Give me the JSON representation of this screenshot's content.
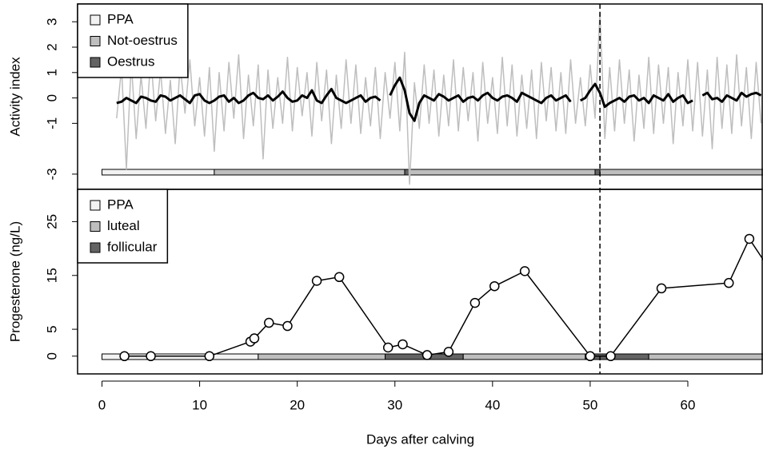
{
  "chart_data": [
    {
      "type": "line",
      "ylabel": "Activity index",
      "xlim": [
        -2.5,
        67.7
      ],
      "ylim": [
        -3.6,
        3.7
      ],
      "yticks": [
        -3,
        -1,
        0,
        1,
        2,
        3
      ],
      "legend": "topleft",
      "vline": 51,
      "x": [
        1.5,
        2,
        2.5,
        3,
        3.5,
        4,
        4.5,
        5,
        5.5,
        6,
        6.5,
        7,
        7.5,
        8,
        8.5,
        9,
        9.5,
        10,
        10.5,
        11,
        11.5,
        12,
        12.5,
        13,
        13.5,
        14,
        14.5,
        15,
        15.5,
        16,
        16.5,
        17,
        17.5,
        18,
        18.5,
        19,
        19.5,
        20,
        20.5,
        21,
        21.5,
        22,
        22.5,
        23,
        23.5,
        24,
        24.5,
        25,
        25.5,
        26,
        26.5,
        27,
        27.5,
        28,
        28.5,
        29,
        29.5,
        30,
        30.5,
        31,
        31.5,
        32,
        32.5,
        33,
        33.5,
        34,
        34.5,
        35,
        35.5,
        36,
        36.5,
        37,
        37.5,
        38,
        38.5,
        39,
        39.5,
        40,
        40.5,
        41,
        41.5,
        42,
        42.5,
        43,
        43.5,
        44,
        44.5,
        45,
        45.5,
        46,
        46.5,
        47,
        47.5,
        48,
        48.5,
        49,
        49.5,
        50,
        50.5,
        51,
        51.5,
        52,
        52.5,
        53,
        53.5,
        54,
        54.5,
        55,
        55.5,
        56,
        56.5,
        57,
        57.5,
        58,
        58.5,
        59,
        59.5,
        60,
        60.5,
        61,
        61.5,
        62,
        62.5,
        63,
        63.5,
        64,
        64.5,
        65,
        65.5,
        66,
        66.5,
        67,
        67.5
      ],
      "series": [
        {
          "color": "#bebebe",
          "width": 1.5,
          "values": [
            -0.8,
            1.2,
            -2.8,
            1.4,
            -1.6,
            0.9,
            -1.2,
            1.6,
            -0.9,
            1.1,
            -1.4,
            0.7,
            -1.8,
            1.3,
            -0.6,
            1.5,
            -1.1,
            0.8,
            -1.5,
            1.2,
            -2.1,
            1.0,
            -1.3,
            1.4,
            -0.8,
            1.7,
            -1.6,
            0.9,
            -1.1,
            1.3,
            -2.4,
            1.1,
            -1.2,
            0.8,
            -1.0,
            1.6,
            -1.3,
            1.2,
            -0.7,
            1.0,
            -1.5,
            1.4,
            -0.9,
            1.1,
            -1.8,
            0.9,
            -1.2,
            1.5,
            -1.0,
            1.3,
            -1.4,
            0.8,
            -1.1,
            1.2,
            -1.6,
            1.0,
            -0.8,
            1.4,
            -1.3,
            1.8,
            -3.4,
            0.6,
            -1.2,
            1.3,
            -1.0,
            1.1,
            -1.5,
            0.9,
            -1.1,
            1.5,
            -1.3,
            1.2,
            -0.9,
            1.0,
            -1.7,
            1.4,
            -1.0,
            0.8,
            -1.4,
            1.6,
            -1.1,
            1.3,
            -1.5,
            0.9,
            -1.2,
            1.1,
            -1.6,
            1.4,
            -0.9,
            1.2,
            -1.3,
            1.0,
            -1.4,
            1.5,
            -1.0,
            0.8,
            -1.1,
            1.3,
            -0.8,
            3.4,
            -1.6,
            1.2,
            -1.3,
            1.5,
            -1.0,
            1.1,
            -1.7,
            0.9,
            -1.2,
            1.6,
            -1.4,
            1.3,
            -1.0,
            1.2,
            -1.8,
            1.0,
            -1.1,
            1.5,
            -1.3,
            1.4,
            -1.5,
            1.1,
            -2.0,
            1.6,
            -1.2,
            1.3,
            -1.4,
            1.7,
            -1.1,
            1.2,
            -1.6,
            1.4,
            -1.0
          ]
        },
        {
          "color": "#000000",
          "width": 3,
          "values": [
            -0.2,
            -0.15,
            0.0,
            -0.1,
            -0.2,
            0.05,
            0.0,
            -0.1,
            -0.15,
            0.1,
            0.05,
            -0.1,
            0.0,
            0.1,
            -0.05,
            -0.2,
            0.1,
            0.15,
            -0.1,
            -0.2,
            -0.1,
            0.05,
            0.1,
            -0.15,
            0.0,
            -0.2,
            -0.1,
            0.1,
            0.2,
            0.0,
            -0.05,
            0.1,
            -0.1,
            0.05,
            0.25,
            0.0,
            -0.15,
            -0.1,
            0.1,
            0.0,
            0.3,
            -0.1,
            -0.2,
            0.1,
            0.35,
            0.0,
            -0.1,
            -0.2,
            -0.1,
            0.0,
            0.1,
            -0.15,
            0.0,
            0.05,
            -0.1,
            null,
            0.1,
            0.5,
            0.8,
            0.3,
            -0.6,
            -0.9,
            -0.2,
            0.1,
            0.0,
            -0.1,
            0.15,
            0.05,
            -0.1,
            0.0,
            0.1,
            -0.15,
            0.0,
            0.05,
            -0.1,
            0.1,
            0.2,
            0.0,
            -0.1,
            0.05,
            0.1,
            0.0,
            -0.15,
            0.2,
            0.1,
            0.0,
            -0.1,
            -0.2,
            0.0,
            0.1,
            -0.1,
            0.0,
            0.1,
            -0.15,
            null,
            -0.1,
            0.0,
            0.3,
            0.55,
            0.2,
            -0.35,
            -0.2,
            -0.1,
            0.0,
            -0.15,
            0.05,
            0.1,
            -0.1,
            0.0,
            -0.2,
            0.1,
            0.0,
            -0.1,
            0.15,
            -0.15,
            0.0,
            0.1,
            -0.2,
            -0.1,
            null,
            0.1,
            0.2,
            -0.05,
            0.0,
            -0.15,
            0.1,
            0.0,
            -0.1,
            0.2,
            0.05,
            0.15,
            0.2,
            0.1
          ]
        }
      ],
      "states": [
        {
          "name": "PPA",
          "color": "#f2f2f2"
        },
        {
          "name": "Not-oestrus",
          "color": "#bebebe"
        },
        {
          "name": "Oestrus",
          "color": "#636363"
        }
      ],
      "segments": [
        {
          "state": 0,
          "start": 0,
          "end": 11.5
        },
        {
          "state": 1,
          "start": 11.5,
          "end": 31
        },
        {
          "state": 2,
          "start": 31,
          "end": 31.5
        },
        {
          "state": 1,
          "start": 31.5,
          "end": 50.5
        },
        {
          "state": 2,
          "start": 50.5,
          "end": 51
        },
        {
          "state": 1,
          "start": 51,
          "end": 68
        }
      ]
    },
    {
      "type": "line",
      "ylabel": "Progesterone (ng/L)",
      "xlabel": "Days after calving",
      "xlim": [
        -2.5,
        67.7
      ],
      "ylim": [
        -3.3,
        31
      ],
      "yticks": [
        0,
        5,
        15,
        25
      ],
      "xticks": [
        0,
        10,
        20,
        30,
        40,
        50,
        60
      ],
      "legend": "topleft",
      "x": [
        2.3,
        5,
        11,
        15.2,
        15.6,
        17.1,
        19,
        22,
        24.3,
        29.3,
        30.8,
        33.3,
        35.5,
        38.2,
        40.2,
        43.3,
        50,
        52.1,
        57.3,
        64.2,
        66.3,
        68.5
      ],
      "series": [
        {
          "color": "#000000",
          "width": 1.5,
          "markers": true,
          "values": [
            0,
            0,
            0,
            2.7,
            3.3,
            6.2,
            5.6,
            14,
            14.7,
            1.6,
            2.2,
            0.2,
            0.8,
            9.9,
            13,
            15.8,
            0,
            0,
            12.6,
            13.6,
            21.8,
            15.8
          ]
        }
      ],
      "states": [
        {
          "name": "PPA",
          "color": "#f2f2f2"
        },
        {
          "name": "luteal",
          "color": "#bebebe"
        },
        {
          "name": "follicular",
          "color": "#636363"
        }
      ],
      "segments": [
        {
          "state": 0,
          "start": 0,
          "end": 16
        },
        {
          "state": 1,
          "start": 16,
          "end": 29
        },
        {
          "state": 2,
          "start": 29,
          "end": 37
        },
        {
          "state": 1,
          "start": 37,
          "end": 49.5
        },
        {
          "state": 2,
          "start": 49.5,
          "end": 56
        },
        {
          "state": 1,
          "start": 56,
          "end": 68
        }
      ]
    }
  ]
}
